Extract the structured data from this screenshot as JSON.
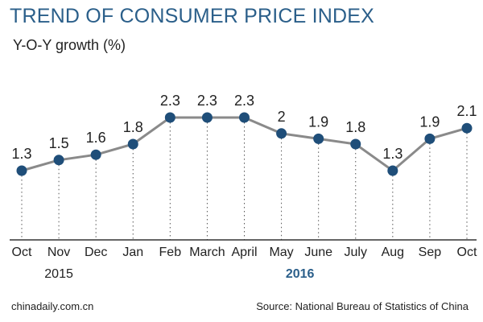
{
  "title": "TREND OF CONSUMER PRICE INDEX",
  "subtitle": "Y-O-Y growth (%)",
  "footer": {
    "left": "chinadaily.com.cn",
    "right": "Source: National Bureau of Statistics of China"
  },
  "colors": {
    "title": "#2b5f8a",
    "line": "#8a8a8a",
    "marker": "#1f4e79",
    "axis": "#333333"
  },
  "chart_data": {
    "type": "line",
    "title": "TREND OF CONSUMER PRICE INDEX",
    "ylabel": "Y-O-Y growth (%)",
    "categories": [
      "Oct",
      "Nov",
      "Dec",
      "Jan",
      "Feb",
      "March",
      "April",
      "May",
      "June",
      "July",
      "Aug",
      "Sep",
      "Oct"
    ],
    "values": [
      1.3,
      1.5,
      1.6,
      1.8,
      2.3,
      2.3,
      2.3,
      2.0,
      1.9,
      1.8,
      1.3,
      1.9,
      2.1
    ],
    "value_labels": [
      "1.3",
      "1.5",
      "1.6",
      "1.8",
      "2.3",
      "2.3",
      "2.3",
      "2",
      "1.9",
      "1.8",
      "1.3",
      "1.9",
      "2.1"
    ],
    "years": [
      {
        "label": "2015",
        "from": 0,
        "to": 2,
        "bold": false
      },
      {
        "label": "2016",
        "from": 3,
        "to": 12,
        "bold": true
      }
    ],
    "grid": false,
    "legend": "none"
  }
}
